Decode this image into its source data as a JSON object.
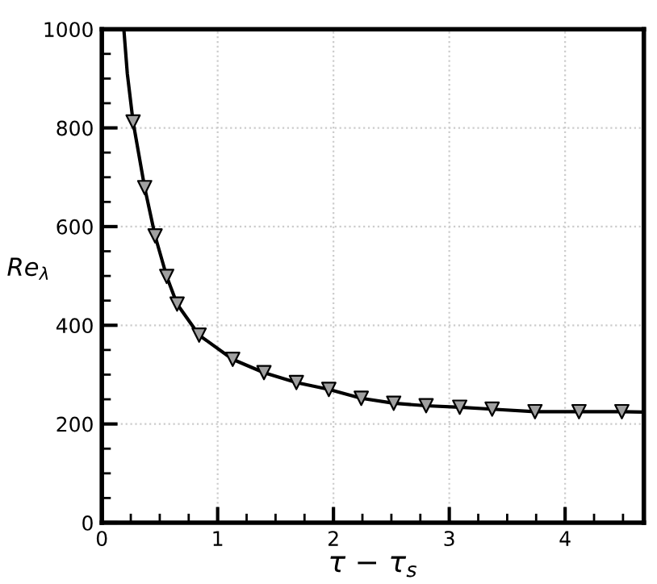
{
  "chart_data": {
    "type": "line",
    "xlabel": "τ − τ$_{s}$",
    "ylabel": "Re$_{λ}$",
    "xlim": [
      0,
      4.68
    ],
    "ylim": [
      0,
      1000
    ],
    "xticks": [
      0,
      1,
      2,
      3,
      4
    ],
    "yticks": [
      0,
      200,
      400,
      600,
      800,
      1000
    ],
    "grid": true,
    "series": [
      {
        "color": "#000000",
        "line_style": "solid",
        "marker": "none",
        "x": [
          0.19,
          0.22,
          0.27,
          0.37,
          0.46,
          0.56,
          0.65,
          0.84,
          1.13,
          1.4,
          1.68,
          1.96,
          2.24,
          2.52,
          2.8,
          3.09,
          3.37,
          3.74,
          4.12,
          4.49,
          4.68
        ],
        "values": [
          1000,
          910,
          812,
          679,
          581,
          499,
          443,
          380,
          331,
          304,
          284,
          270,
          252,
          242,
          237,
          234,
          230,
          225,
          225,
          225,
          224
        ]
      },
      {
        "type": "scatter",
        "color": "#a0a0a0",
        "marker": "triangle",
        "x": [
          0.27,
          0.37,
          0.46,
          0.56,
          0.65,
          0.84,
          1.13,
          1.4,
          1.68,
          1.96,
          2.24,
          2.52,
          2.8,
          3.09,
          3.37,
          3.74,
          4.12,
          4.49
        ],
        "values": [
          812,
          679,
          581,
          499,
          443,
          380,
          331,
          304,
          284,
          270,
          252,
          242,
          237,
          234,
          230,
          225,
          225,
          225
        ]
      }
    ]
  }
}
